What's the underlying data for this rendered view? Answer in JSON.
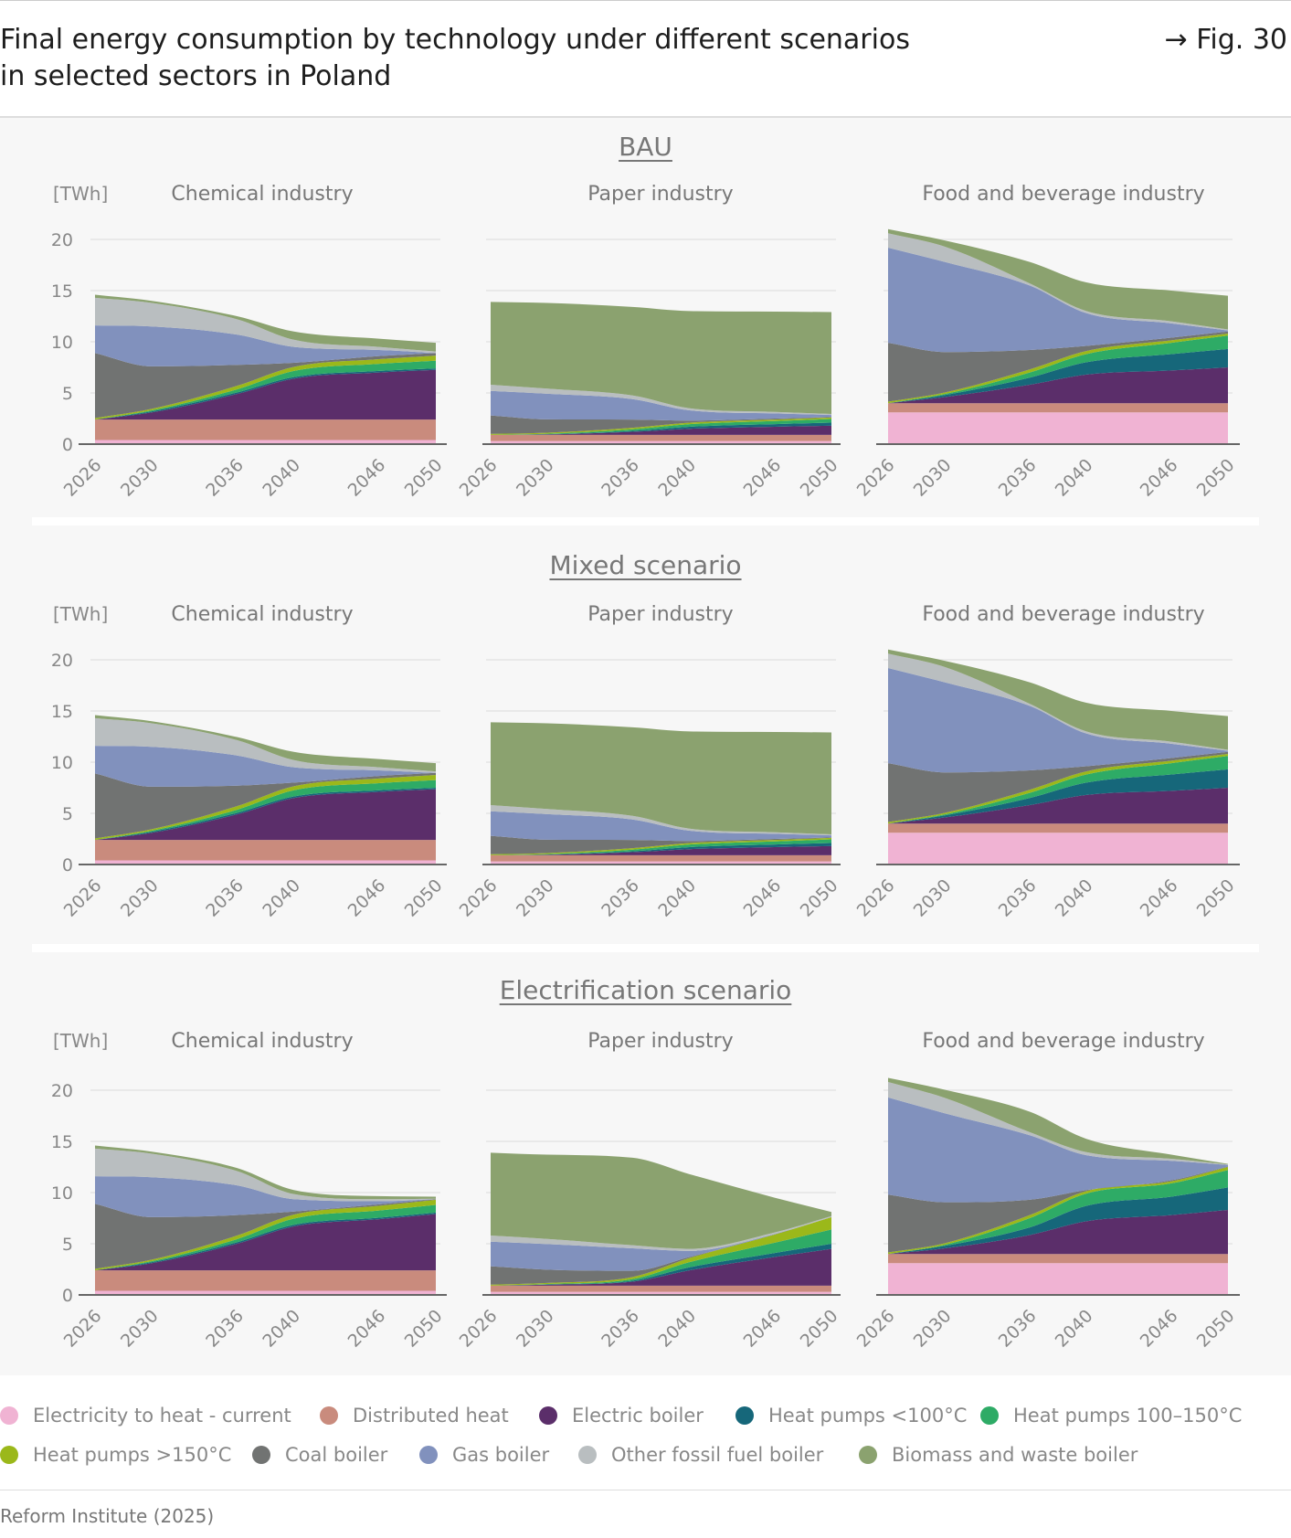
{
  "header": {
    "title_line1": "Final energy consumption by technology under different scenarios",
    "title_line2": "in selected sectors in Poland",
    "fig_label": "→ Fig. 30"
  },
  "source": "Reform Institute (2025)",
  "chart_data": {
    "type": "area",
    "stacked": true,
    "x": [
      2026,
      2030,
      2036,
      2040,
      2046,
      2050
    ],
    "x_tick_labels": [
      "2026",
      "2030",
      "2036",
      "2040",
      "2046",
      "2050"
    ],
    "ylabel": "[TWh]",
    "ylim": [
      0,
      20
    ],
    "yticks": [
      0,
      5,
      10,
      15,
      20
    ],
    "y_tick_labels": [
      "0",
      "5",
      "10",
      "15",
      "20"
    ],
    "grid": true,
    "legend_position": "bottom",
    "series": [
      {
        "name": "Electricity to heat - current",
        "color": "#f0b3d3"
      },
      {
        "name": "Distributed heat",
        "color": "#c98b7d"
      },
      {
        "name": "Electric boiler",
        "color": "#5b2e6a"
      },
      {
        "name": "Heat pumps <100°C",
        "color": "#16677a"
      },
      {
        "name": "Heat pumps 100–150°C",
        "color": "#2eab66"
      },
      {
        "name": "Heat pumps >150°C",
        "color": "#9bb81a"
      },
      {
        "name": "Coal boiler",
        "color": "#717372"
      },
      {
        "name": "Gas boiler",
        "color": "#8191bd"
      },
      {
        "name": "Other fossil fuel boiler",
        "color": "#b9bec0"
      },
      {
        "name": "Biomass and waste boiler",
        "color": "#8ba26f"
      }
    ],
    "scenarios": [
      {
        "title": "BAU",
        "panels": [
          {
            "title": "Chemical industry",
            "values": [
              [
                0.4,
                0.4,
                0.4,
                0.4,
                0.4,
                0.4
              ],
              [
                2,
                2,
                2,
                2,
                2,
                2
              ],
              [
                0,
                0.7,
                2.5,
                4.0,
                4.6,
                4.85
              ],
              [
                0,
                0.1,
                0.15,
                0.15,
                0.15,
                0.15
              ],
              [
                0,
                0.1,
                0.3,
                0.6,
                0.7,
                0.75
              ],
              [
                0.15,
                0.15,
                0.35,
                0.4,
                0.45,
                0.5
              ],
              [
                6.35,
                4.15,
                2.05,
                0.4,
                0.3,
                0.25
              ],
              [
                2.7,
                3.9,
                2.95,
                1.55,
                0.6,
                0
              ],
              [
                2.7,
                2.3,
                1.5,
                0.7,
                0.3,
                0.15
              ],
              [
                0.3,
                0.2,
                0.3,
                0.8,
                0.8,
                0.85
              ]
            ]
          },
          {
            "title": "Paper industry",
            "values": [
              [
                0.3,
                0.3,
                0.3,
                0.3,
                0.3,
                0.3
              ],
              [
                0.6,
                0.6,
                0.6,
                0.6,
                0.6,
                0.6
              ],
              [
                0,
                0.05,
                0.3,
                0.6,
                0.8,
                0.9
              ],
              [
                0,
                0.02,
                0.1,
                0.2,
                0.25,
                0.3
              ],
              [
                0,
                0.05,
                0.15,
                0.25,
                0.3,
                0.35
              ],
              [
                0.1,
                0.1,
                0.15,
                0.15,
                0.15,
                0.15
              ],
              [
                1.8,
                1.3,
                0.8,
                0.2,
                0.1,
                0.05
              ],
              [
                2.4,
                2.5,
                2.0,
                1.0,
                0.5,
                0.2
              ],
              [
                0.6,
                0.5,
                0.35,
                0.2,
                0.15,
                0.1
              ],
              [
                8.1,
                8.38,
                8.65,
                9.5,
                9.8,
                9.95
              ]
            ]
          },
          {
            "title": "Food and beverage industry",
            "values": [
              [
                3.1,
                3.1,
                3.1,
                3.1,
                3.1,
                3.1
              ],
              [
                0.9,
                0.9,
                0.9,
                0.9,
                0.9,
                0.9
              ],
              [
                0,
                0.6,
                1.8,
                2.8,
                3.2,
                3.5
              ],
              [
                0,
                0.2,
                0.7,
                1.2,
                1.6,
                1.8
              ],
              [
                0,
                0.1,
                0.5,
                0.8,
                1.1,
                1.3
              ],
              [
                0.15,
                0.15,
                0.3,
                0.3,
                0.25,
                0.2
              ],
              [
                5.75,
                3.95,
                1.9,
                0.5,
                0.25,
                0.2
              ],
              [
                9.3,
                8.8,
                6.3,
                3.2,
                1.4,
                0.1
              ],
              [
                1.4,
                1.5,
                0.2,
                0.2,
                0.2,
                0.1
              ],
              [
                0.4,
                0.6,
                2.1,
                2.8,
                3.0,
                3.3
              ]
            ]
          }
        ]
      },
      {
        "title": "Mixed scenario",
        "panels": [
          {
            "title": "Chemical industry",
            "values": [
              [
                0.4,
                0.4,
                0.4,
                0.4,
                0.4,
                0.4
              ],
              [
                2,
                2,
                2,
                2,
                2,
                2
              ],
              [
                0,
                0.7,
                2.5,
                4.1,
                4.7,
                4.95
              ],
              [
                0,
                0.1,
                0.15,
                0.15,
                0.15,
                0.15
              ],
              [
                0,
                0.1,
                0.3,
                0.6,
                0.7,
                0.75
              ],
              [
                0.15,
                0.15,
                0.35,
                0.4,
                0.45,
                0.5
              ],
              [
                6.35,
                4.15,
                2.0,
                0.35,
                0.25,
                0.2
              ],
              [
                2.7,
                3.9,
                2.95,
                1.5,
                0.55,
                0
              ],
              [
                2.7,
                2.3,
                1.5,
                0.7,
                0.3,
                0.15
              ],
              [
                0.3,
                0.2,
                0.3,
                0.8,
                0.8,
                0.8
              ]
            ]
          },
          {
            "title": "Paper industry",
            "values": [
              [
                0.3,
                0.3,
                0.3,
                0.3,
                0.3,
                0.3
              ],
              [
                0.6,
                0.6,
                0.6,
                0.6,
                0.6,
                0.6
              ],
              [
                0,
                0.05,
                0.3,
                0.6,
                0.8,
                0.9
              ],
              [
                0,
                0.02,
                0.1,
                0.2,
                0.25,
                0.3
              ],
              [
                0,
                0.05,
                0.15,
                0.25,
                0.3,
                0.35
              ],
              [
                0.1,
                0.1,
                0.15,
                0.15,
                0.15,
                0.15
              ],
              [
                1.8,
                1.3,
                0.8,
                0.2,
                0.1,
                0.05
              ],
              [
                2.4,
                2.5,
                2.0,
                1.0,
                0.5,
                0.2
              ],
              [
                0.6,
                0.5,
                0.35,
                0.2,
                0.15,
                0.1
              ],
              [
                8.1,
                8.38,
                8.65,
                9.5,
                9.8,
                9.95
              ]
            ]
          },
          {
            "title": "Food and beverage industry",
            "values": [
              [
                3.1,
                3.1,
                3.1,
                3.1,
                3.1,
                3.1
              ],
              [
                0.9,
                0.9,
                0.9,
                0.9,
                0.9,
                0.9
              ],
              [
                0,
                0.6,
                1.8,
                2.8,
                3.2,
                3.5
              ],
              [
                0,
                0.2,
                0.7,
                1.2,
                1.6,
                1.8
              ],
              [
                0,
                0.1,
                0.5,
                0.8,
                1.1,
                1.3
              ],
              [
                0.15,
                0.15,
                0.3,
                0.3,
                0.25,
                0.2
              ],
              [
                5.75,
                3.95,
                1.9,
                0.5,
                0.25,
                0.2
              ],
              [
                9.3,
                8.8,
                6.3,
                3.2,
                1.4,
                0.1
              ],
              [
                1.4,
                1.5,
                0.2,
                0.2,
                0.2,
                0.1
              ],
              [
                0.4,
                0.6,
                2.1,
                2.8,
                3.0,
                3.3
              ]
            ]
          }
        ]
      },
      {
        "title": "Electrification scenario",
        "panels": [
          {
            "title": "Chemical industry",
            "values": [
              [
                0.4,
                0.4,
                0.4,
                0.4,
                0.4,
                0.4
              ],
              [
                2,
                2,
                2,
                2,
                2,
                2
              ],
              [
                0,
                0.7,
                2.6,
                4.3,
                5.0,
                5.5
              ],
              [
                0,
                0.1,
                0.15,
                0.15,
                0.15,
                0.15
              ],
              [
                0,
                0.1,
                0.3,
                0.6,
                0.7,
                0.75
              ],
              [
                0.15,
                0.15,
                0.35,
                0.4,
                0.45,
                0.5
              ],
              [
                6.35,
                4.15,
                2.0,
                0.3,
                0.15,
                0.05
              ],
              [
                2.7,
                3.9,
                2.9,
                1.2,
                0.3,
                0
              ],
              [
                2.7,
                2.3,
                1.4,
                0.5,
                0.2,
                0.05
              ],
              [
                0.3,
                0.2,
                0.3,
                0.4,
                0.3,
                0.2
              ]
            ]
          },
          {
            "title": "Paper industry",
            "values": [
              [
                0.3,
                0.3,
                0.3,
                0.3,
                0.3,
                0.3
              ],
              [
                0.6,
                0.6,
                0.6,
                0.6,
                0.6,
                0.6
              ],
              [
                0,
                0.1,
                0.4,
                1.5,
                2.8,
                3.6
              ],
              [
                0,
                0.02,
                0.1,
                0.3,
                0.4,
                0.5
              ],
              [
                0,
                0.05,
                0.15,
                0.5,
                1.0,
                1.4
              ],
              [
                0.1,
                0.1,
                0.2,
                0.4,
                0.8,
                1.2
              ],
              [
                1.8,
                1.3,
                0.6,
                0.1,
                0,
                0
              ],
              [
                2.4,
                2.5,
                2.2,
                0.6,
                0.05,
                0
              ],
              [
                0.6,
                0.5,
                0.3,
                0.2,
                0.15,
                0.1
              ],
              [
                8.1,
                8.23,
                8.55,
                7.3,
                3.4,
                0.4
              ]
            ]
          },
          {
            "title": "Food and beverage industry",
            "values": [
              [
                3.1,
                3.1,
                3.1,
                3.1,
                3.1,
                3.1
              ],
              [
                0.9,
                0.9,
                0.9,
                0.9,
                0.9,
                0.9
              ],
              [
                0,
                0.55,
                1.85,
                3.2,
                3.8,
                4.3
              ],
              [
                0,
                0.25,
                0.75,
                1.5,
                1.8,
                2.2
              ],
              [
                0,
                0.1,
                0.9,
                1.2,
                1.3,
                1.7
              ],
              [
                0.15,
                0.15,
                0.3,
                0.25,
                0.2,
                0.3
              ],
              [
                5.65,
                4.0,
                1.5,
                0.1,
                0.1,
                0.05
              ],
              [
                9.5,
                8.7,
                6.3,
                3.4,
                1.9,
                0.15
              ],
              [
                1.5,
                1.5,
                0.3,
                0.3,
                0.2,
                0.05
              ],
              [
                0.4,
                0.8,
                2.0,
                1.3,
                0.4,
                0.05
              ]
            ]
          }
        ]
      }
    ]
  }
}
